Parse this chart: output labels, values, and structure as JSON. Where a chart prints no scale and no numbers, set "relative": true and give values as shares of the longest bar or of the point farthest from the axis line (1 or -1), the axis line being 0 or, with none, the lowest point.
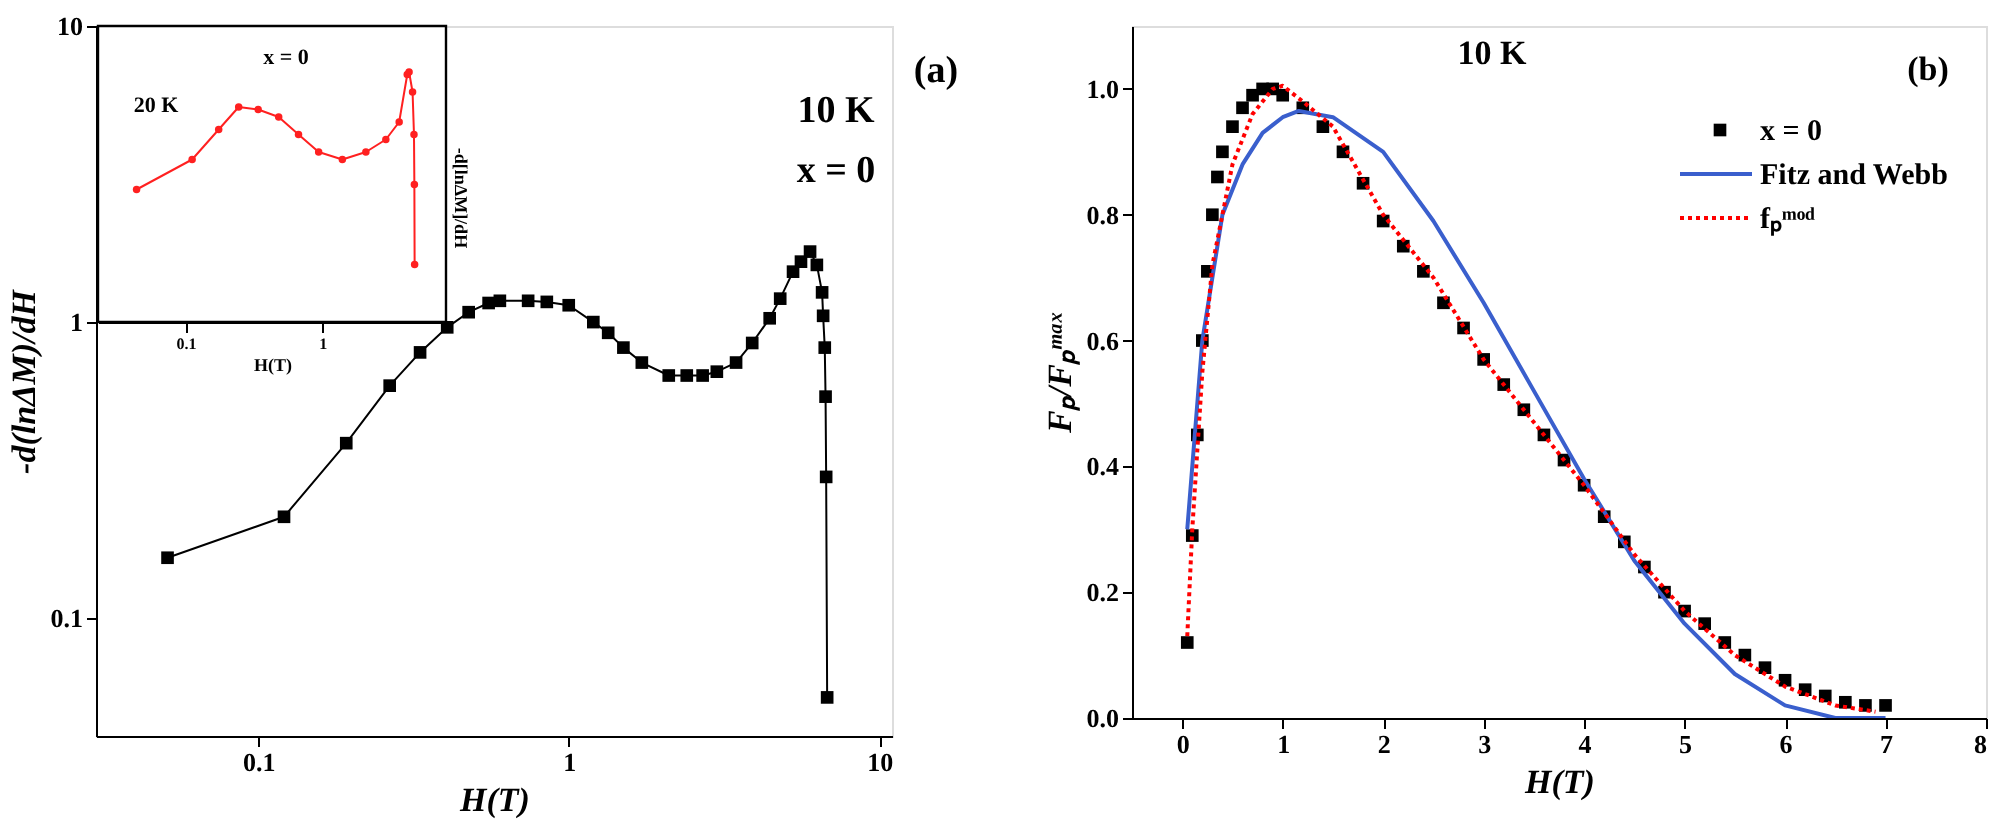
{
  "chart_data": [
    {
      "type": "line",
      "xlabel": "H(T)",
      "ylabel": "-d(lnΔM)/dH",
      "annotations": [
        "10 K",
        "x = 0",
        "(a)"
      ],
      "log": "xy",
      "marker": "square",
      "line_style": "solid",
      "xlim": [
        0.03,
        11
      ],
      "ylim": [
        0.04,
        10
      ],
      "xticks": [
        0.1,
        1,
        10
      ],
      "yticks": [
        0.1,
        1,
        10
      ],
      "series": [
        {
          "color": "#000000",
          "x": [
            0.051,
            0.121,
            0.192,
            0.265,
            0.332,
            0.406,
            0.476,
            0.552,
            0.6,
            0.74,
            0.85,
            1.0,
            1.2,
            1.34,
            1.5,
            1.72,
            2.1,
            2.4,
            2.7,
            3.0,
            3.46,
            3.9,
            4.44,
            4.8,
            5.28,
            5.6,
            5.99,
            6.3,
            6.55,
            6.6,
            6.68,
            6.72,
            6.75,
            6.8
          ],
          "values": [
            0.16,
            0.22,
            0.39,
            0.61,
            0.79,
            0.96,
            1.08,
            1.16,
            1.18,
            1.18,
            1.17,
            1.14,
            1.0,
            0.92,
            0.82,
            0.73,
            0.66,
            0.66,
            0.66,
            0.68,
            0.73,
            0.85,
            1.03,
            1.2,
            1.48,
            1.6,
            1.73,
            1.56,
            1.26,
            1.05,
            0.82,
            0.56,
            0.3,
            0.054
          ]
        }
      ]
    },
    {
      "type": "line",
      "xlabel": "H(T)",
      "ylabel": "-d[lnΔM]/dH",
      "annotations": [
        "20 K",
        "x = 0"
      ],
      "log": "x",
      "relative": true,
      "tick_labels": "x",
      "marker": "circle",
      "line_style": "solid",
      "xlim": [
        0.023,
        8
      ],
      "xticks": [
        0.1,
        1
      ],
      "series": [
        {
          "color": "#ff2020",
          "x": [
            0.044,
            0.112,
            0.175,
            0.245,
            0.34,
            0.48,
            0.67,
            0.94,
            1.4,
            2.08,
            2.91,
            3.64,
            4.17,
            4.3,
            4.56,
            4.67,
            4.7,
            4.72
          ],
          "values": [
            0.53,
            0.65,
            0.77,
            0.86,
            0.85,
            0.82,
            0.75,
            0.68,
            0.65,
            0.68,
            0.73,
            0.8,
            0.99,
            1.0,
            0.92,
            0.75,
            0.55,
            0.23
          ]
        }
      ]
    },
    {
      "type": "line",
      "xlabel": "H(T)",
      "ylabel": "Fₚ/Fₚᵐᵃˣ",
      "annotations": [
        "10 K",
        "(b)"
      ],
      "legend": "top right",
      "xlim": [
        -0.5,
        8
      ],
      "ylim": [
        0,
        1.1
      ],
      "xticks": [
        0,
        1,
        2,
        3,
        4,
        5,
        6,
        7,
        8
      ],
      "yticks": [
        {
          "value": 0,
          "label": "0.0"
        },
        {
          "value": 0.2,
          "label": "0.2"
        },
        {
          "value": 0.4,
          "label": "0.4"
        },
        {
          "value": 0.6,
          "label": "0.6"
        },
        {
          "value": 0.8,
          "label": "0.8"
        },
        {
          "value": 1.0,
          "label": "1.0"
        }
      ],
      "series": [
        {
          "name": "x = 0",
          "type": "scatter",
          "marker": "square",
          "color": "#000000",
          "x": [
            0.05,
            0.1,
            0.15,
            0.2,
            0.25,
            0.3,
            0.35,
            0.4,
            0.5,
            0.6,
            0.7,
            0.8,
            0.9,
            1.0,
            1.2,
            1.4,
            1.6,
            1.8,
            2.0,
            2.2,
            2.4,
            2.6,
            2.8,
            3.0,
            3.2,
            3.4,
            3.6,
            3.8,
            4.0,
            4.2,
            4.4,
            4.6,
            4.8,
            5.0,
            5.2,
            5.4,
            5.6,
            5.8,
            6.0,
            6.2,
            6.4,
            6.6,
            6.8,
            7.0
          ],
          "values": [
            0.12,
            0.29,
            0.45,
            0.6,
            0.71,
            0.8,
            0.86,
            0.9,
            0.94,
            0.97,
            0.99,
            1.0,
            1.0,
            0.99,
            0.97,
            0.94,
            0.9,
            0.85,
            0.79,
            0.75,
            0.71,
            0.66,
            0.62,
            0.57,
            0.53,
            0.49,
            0.45,
            0.41,
            0.37,
            0.32,
            0.28,
            0.24,
            0.2,
            0.17,
            0.15,
            0.12,
            0.1,
            0.08,
            0.06,
            0.045,
            0.035,
            0.025,
            0.02,
            0.02
          ]
        },
        {
          "name": "Fitz and Webb",
          "type": "line",
          "line_style": "solid",
          "color": "#3a5fcd",
          "x": [
            0.05,
            0.2,
            0.4,
            0.6,
            0.8,
            1.0,
            1.16,
            1.5,
            2.0,
            2.5,
            3.0,
            3.5,
            4.0,
            4.5,
            5.0,
            5.5,
            6.0,
            6.5,
            7.0
          ],
          "values": [
            0.3,
            0.6,
            0.8,
            0.88,
            0.93,
            0.955,
            0.965,
            0.955,
            0.9,
            0.79,
            0.66,
            0.52,
            0.38,
            0.25,
            0.15,
            0.07,
            0.02,
            0.0,
            0.0
          ]
        },
        {
          "name": "fₚᵐᵒᵈ",
          "type": "line",
          "line_style": "dotted",
          "color": "#ff0000",
          "x": [
            0.05,
            0.1,
            0.2,
            0.3,
            0.5,
            0.7,
            0.9,
            1.0,
            1.2,
            1.5,
            2.0,
            2.5,
            3.0,
            3.5,
            4.0,
            4.5,
            5.0,
            5.5,
            6.0,
            6.5,
            6.9
          ],
          "values": [
            0.13,
            0.3,
            0.55,
            0.72,
            0.88,
            0.96,
            1.0,
            1.005,
            0.98,
            0.94,
            0.8,
            0.7,
            0.57,
            0.47,
            0.37,
            0.26,
            0.17,
            0.1,
            0.05,
            0.02,
            0.01
          ]
        }
      ]
    }
  ]
}
